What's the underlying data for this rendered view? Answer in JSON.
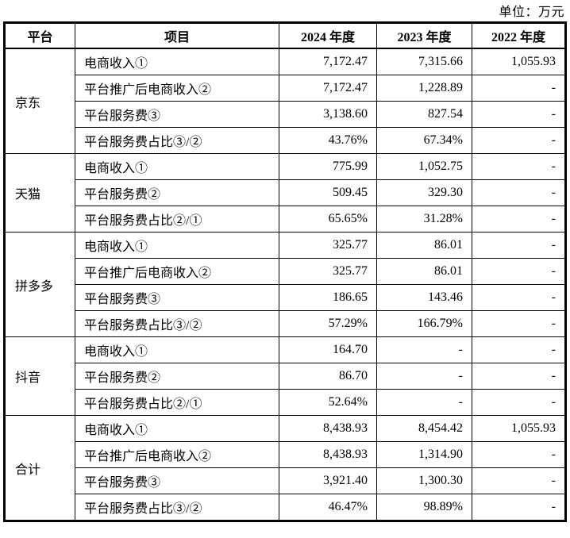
{
  "unit_label": "单位：万元",
  "table": {
    "headers": [
      "平台",
      "项目",
      "2024 年度",
      "2023 年度",
      "2022 年度"
    ],
    "groups": [
      {
        "platform": "京东",
        "rows": [
          {
            "item": "电商收入①",
            "y2024": "7,172.47",
            "y2023": "7,315.66",
            "y2022": "1,055.93"
          },
          {
            "item": "平台推广后电商收入②",
            "y2024": "7,172.47",
            "y2023": "1,228.89",
            "y2022": "-"
          },
          {
            "item": "平台服务费③",
            "y2024": "3,138.60",
            "y2023": "827.54",
            "y2022": "-"
          },
          {
            "item": "平台服务费占比③/②",
            "y2024": "43.76%",
            "y2023": "67.34%",
            "y2022": "-"
          }
        ]
      },
      {
        "platform": "天猫",
        "rows": [
          {
            "item": "电商收入①",
            "y2024": "775.99",
            "y2023": "1,052.75",
            "y2022": "-"
          },
          {
            "item": "平台服务费②",
            "y2024": "509.45",
            "y2023": "329.30",
            "y2022": "-"
          },
          {
            "item": "平台服务费占比②/①",
            "y2024": "65.65%",
            "y2023": "31.28%",
            "y2022": "-"
          }
        ]
      },
      {
        "platform": "拼多多",
        "rows": [
          {
            "item": "电商收入①",
            "y2024": "325.77",
            "y2023": "86.01",
            "y2022": "-"
          },
          {
            "item": "平台推广后电商收入②",
            "y2024": "325.77",
            "y2023": "86.01",
            "y2022": "-"
          },
          {
            "item": "平台服务费③",
            "y2024": "186.65",
            "y2023": "143.46",
            "y2022": "-"
          },
          {
            "item": "平台服务费占比③/②",
            "y2024": "57.29%",
            "y2023": "166.79%",
            "y2022": "-"
          }
        ]
      },
      {
        "platform": "抖音",
        "rows": [
          {
            "item": "电商收入①",
            "y2024": "164.70",
            "y2023": "-",
            "y2022": "-"
          },
          {
            "item": "平台服务费②",
            "y2024": "86.70",
            "y2023": "-",
            "y2022": "-"
          },
          {
            "item": "平台服务费占比②/①",
            "y2024": "52.64%",
            "y2023": "-",
            "y2022": "-"
          }
        ]
      },
      {
        "platform": "合计",
        "rows": [
          {
            "item": "电商收入①",
            "y2024": "8,438.93",
            "y2023": "8,454.42",
            "y2022": "1,055.93"
          },
          {
            "item": "平台推广后电商收入②",
            "y2024": "8,438.93",
            "y2023": "1,314.90",
            "y2022": "-"
          },
          {
            "item": "平台服务费③",
            "y2024": "3,921.40",
            "y2023": "1,300.30",
            "y2022": "-"
          },
          {
            "item": "平台服务费占比③/②",
            "y2024": "46.47%",
            "y2023": "98.89%",
            "y2022": "-"
          }
        ]
      }
    ]
  }
}
